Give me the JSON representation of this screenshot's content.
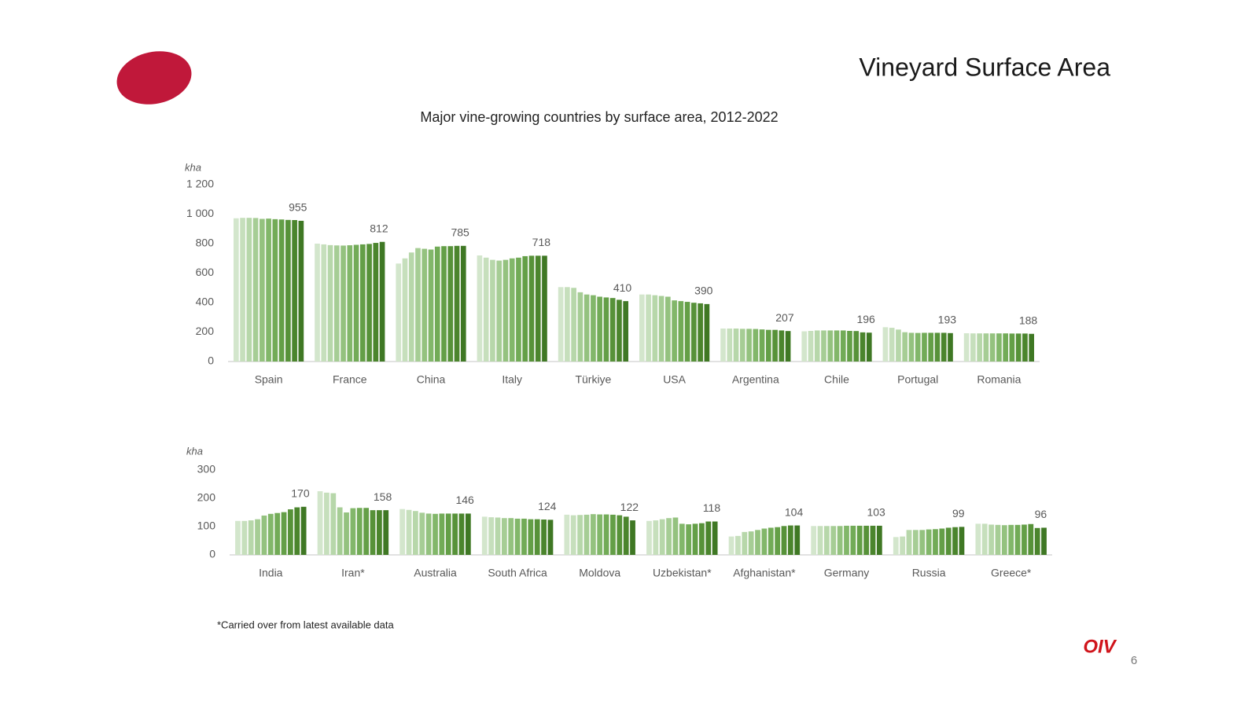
{
  "slide": {
    "title": "Vineyard Surface Area",
    "footnote": "*Carried over from latest available data",
    "logo_text": "OIV",
    "page_number": "6"
  },
  "chart_data": [
    {
      "type": "bar",
      "title": "Major vine-growing countries by surface area, 2012-2022",
      "y_label": "kha",
      "ylim": [
        0,
        1200
      ],
      "yticks": [
        0,
        200,
        400,
        600,
        800,
        {
          "value": 1000,
          "label": "1 000"
        },
        {
          "value": 1200,
          "label": "1 200"
        }
      ],
      "colors": [
        "#d3e6cc",
        "#c6dfbc",
        "#b7d7aa",
        "#a6cd95",
        "#94c27f",
        "#82b76a",
        "#72ab57",
        "#649f47",
        "#579239",
        "#4b852d",
        "#3f7824"
      ],
      "groups": [
        {
          "name": "Spain",
          "values": [
            972,
            975,
            975,
            974,
            968,
            970,
            966,
            964,
            961,
            960,
            955
          ]
        },
        {
          "name": "France",
          "values": [
            800,
            795,
            790,
            788,
            787,
            789,
            792,
            795,
            798,
            805,
            812
          ]
        },
        {
          "name": "China",
          "values": [
            665,
            700,
            740,
            770,
            765,
            760,
            780,
            783,
            783,
            785,
            785
          ]
        },
        {
          "name": "Italy",
          "values": [
            720,
            705,
            690,
            685,
            690,
            700,
            705,
            715,
            718,
            718,
            718
          ]
        },
        {
          "name": "Türkiye",
          "values": [
            505,
            505,
            500,
            470,
            455,
            450,
            440,
            435,
            431,
            419,
            410
          ]
        },
        {
          "name": "USA",
          "values": [
            455,
            455,
            450,
            445,
            440,
            415,
            410,
            405,
            399,
            395,
            390
          ]
        },
        {
          "name": "Argentina",
          "values": [
            224,
            224,
            224,
            222,
            222,
            221,
            218,
            215,
            215,
            211,
            207
          ]
        },
        {
          "name": "Chile",
          "values": [
            205,
            208,
            211,
            211,
            211,
            211,
            211,
            208,
            207,
            198,
            196
          ]
        },
        {
          "name": "Portugal",
          "values": [
            233,
            229,
            217,
            199,
            195,
            194,
            195,
            195,
            195,
            195,
            193
          ]
        },
        {
          "name": "Romania",
          "values": [
            192,
            191,
            191,
            191,
            191,
            191,
            191,
            190,
            190,
            190,
            188
          ]
        }
      ]
    },
    {
      "type": "bar",
      "y_label": "kha",
      "ylim": [
        0,
        300
      ],
      "yticks": [
        0,
        100,
        200,
        300
      ],
      "colors": [
        "#d3e6cc",
        "#c6dfbc",
        "#b7d7aa",
        "#a6cd95",
        "#94c27f",
        "#82b76a",
        "#72ab57",
        "#649f47",
        "#579239",
        "#4b852d",
        "#3f7824"
      ],
      "groups": [
        {
          "name": "India",
          "values": [
            120,
            120,
            122,
            126,
            139,
            145,
            148,
            151,
            161,
            168,
            170
          ]
        },
        {
          "name": "Iran*",
          "values": [
            225,
            220,
            218,
            168,
            150,
            165,
            166,
            166,
            158,
            158,
            158
          ]
        },
        {
          "name": "Australia",
          "values": [
            162,
            159,
            155,
            149,
            146,
            145,
            146,
            146,
            146,
            146,
            146
          ]
        },
        {
          "name": "South Africa",
          "values": [
            135,
            133,
            132,
            130,
            130,
            128,
            128,
            126,
            126,
            125,
            124
          ]
        },
        {
          "name": "Moldova",
          "values": [
            142,
            140,
            141,
            142,
            144,
            143,
            143,
            142,
            140,
            135,
            122
          ]
        },
        {
          "name": "Uzbekistan*",
          "values": [
            120,
            122,
            126,
            130,
            132,
            110,
            108,
            110,
            112,
            118,
            118
          ]
        },
        {
          "name": "Afghanistan*",
          "values": [
            65,
            67,
            81,
            83,
            88,
            93,
            96,
            98,
            102,
            104,
            104
          ]
        },
        {
          "name": "Germany",
          "values": [
            102,
            102,
            102,
            102,
            102,
            103,
            103,
            103,
            103,
            103,
            103
          ]
        },
        {
          "name": "Russia",
          "values": [
            63,
            65,
            88,
            88,
            88,
            90,
            91,
            93,
            96,
            98,
            99
          ]
        },
        {
          "name": "Greece*",
          "values": [
            110,
            110,
            107,
            106,
            105,
            106,
            106,
            107,
            109,
            95,
            96
          ]
        }
      ]
    }
  ]
}
